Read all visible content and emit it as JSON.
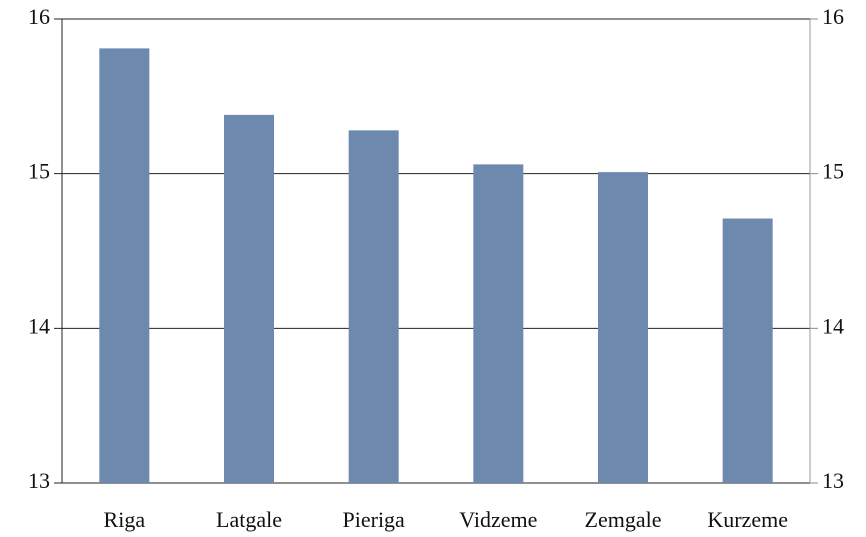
{
  "chart_data": {
    "type": "bar",
    "categories": [
      "Riga",
      "Latgale",
      "Pieriga",
      "Vidzeme",
      "Zemgale",
      "Kurzeme"
    ],
    "values": [
      15.81,
      15.38,
      15.28,
      15.06,
      15.01,
      14.71
    ],
    "color": "#6e89ae",
    "ylim": [
      13,
      16
    ],
    "yticks": [
      13,
      14,
      15,
      16
    ],
    "y2lim": [
      13,
      16
    ],
    "y2ticks": [
      13,
      14,
      15,
      16
    ],
    "grid": true
  }
}
